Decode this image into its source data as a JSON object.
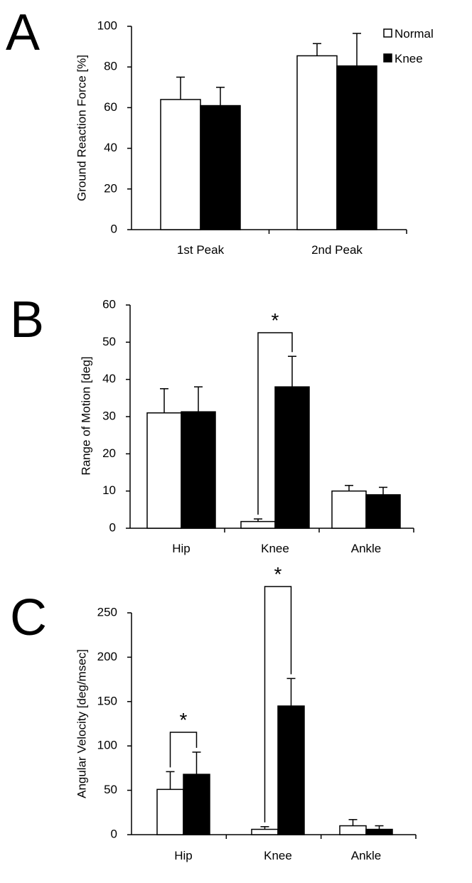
{
  "chart_data": [
    {
      "panel": "A",
      "type": "bar",
      "ylabel": "Ground Reaction Force [%]",
      "ylim": [
        0,
        100
      ],
      "yticks": [
        0,
        20,
        40,
        60,
        80,
        100
      ],
      "categories": [
        "1st Peak",
        "2nd Peak"
      ],
      "series": [
        {
          "name": "Normal",
          "color": "#ffffff",
          "values": [
            64,
            85.5
          ],
          "errors": [
            11,
            6
          ]
        },
        {
          "name": "Knee",
          "color": "#000000",
          "values": [
            61,
            80.5
          ],
          "errors": [
            9,
            16
          ]
        }
      ],
      "legend": {
        "position": "top-right",
        "entries": [
          "Normal",
          "Knee"
        ]
      },
      "significance": []
    },
    {
      "panel": "B",
      "type": "bar",
      "ylabel": "Range of Motion [deg]",
      "ylim": [
        0,
        60
      ],
      "yticks": [
        0,
        10,
        20,
        30,
        40,
        50,
        60
      ],
      "categories": [
        "Hip",
        "Knee",
        "Ankle"
      ],
      "series": [
        {
          "name": "Normal",
          "color": "#ffffff",
          "values": [
            31,
            1.8,
            10
          ],
          "errors": [
            6.5,
            0.7,
            1.5
          ]
        },
        {
          "name": "Knee",
          "color": "#000000",
          "values": [
            31.3,
            38,
            9
          ],
          "errors": [
            6.7,
            8.2,
            2
          ]
        }
      ],
      "significance": [
        {
          "category": "Knee",
          "label": "*"
        }
      ]
    },
    {
      "panel": "C",
      "type": "bar",
      "ylabel": "Angular Velocity [deg/msec]",
      "ylim": [
        0,
        250
      ],
      "yticks": [
        0,
        50,
        100,
        150,
        200,
        250
      ],
      "categories": [
        "Hip",
        "Knee",
        "Ankle"
      ],
      "series": [
        {
          "name": "Normal",
          "color": "#ffffff",
          "values": [
            51,
            6,
            10
          ],
          "errors": [
            20,
            3,
            7
          ]
        },
        {
          "name": "Knee",
          "color": "#000000",
          "values": [
            68,
            145,
            6
          ],
          "errors": [
            25,
            31,
            4
          ]
        }
      ],
      "significance": [
        {
          "category": "Hip",
          "label": "*"
        },
        {
          "category": "Knee",
          "label": "*"
        }
      ]
    }
  ]
}
